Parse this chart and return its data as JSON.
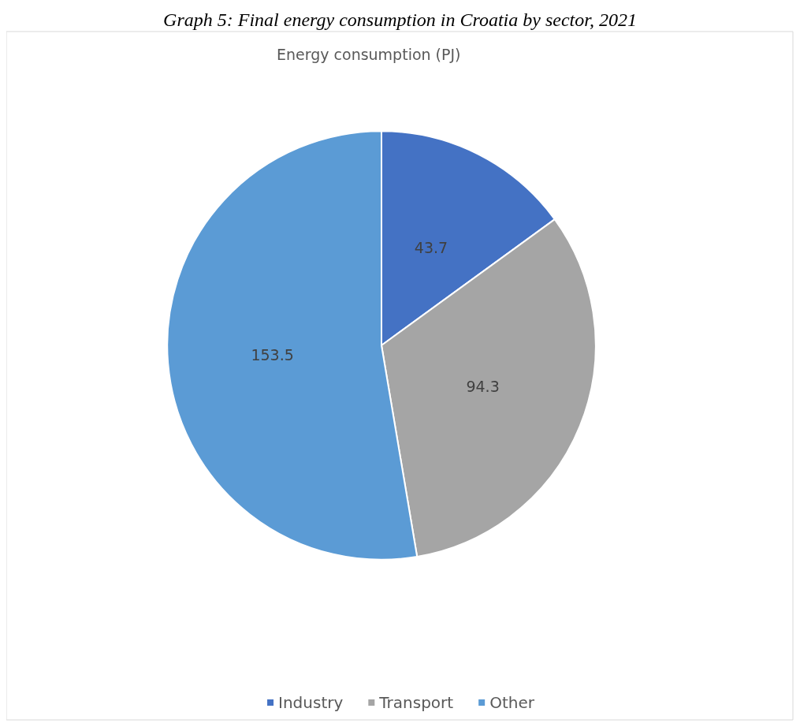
{
  "chart_data": {
    "type": "pie",
    "title": "Graph 5: Final energy consumption in Croatia by sector, 2021",
    "subtitle": "Energy consumption (PJ)",
    "categories": [
      "Industry",
      "Transport",
      "Other"
    ],
    "values": [
      43.7,
      94.3,
      153.5
    ],
    "colors": [
      "#4472c4",
      "#a5a5a5",
      "#5b9bd5"
    ],
    "data_labels": true,
    "legend": "bottom"
  }
}
